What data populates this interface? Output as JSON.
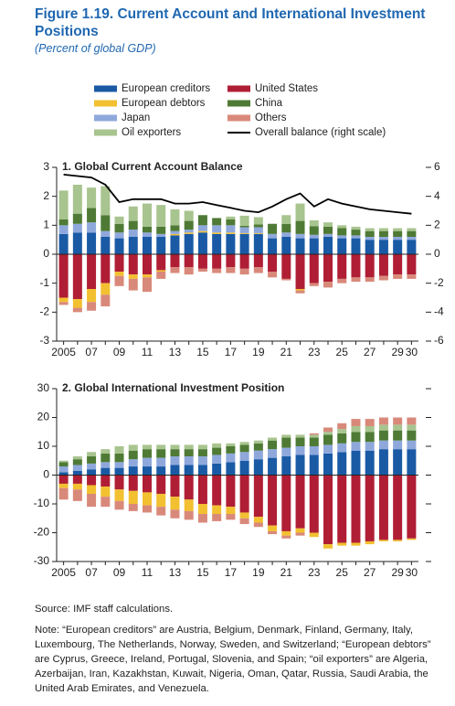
{
  "figure": {
    "title": "Figure 1.19.  Current Account and International Investment Positions",
    "subtitle": "(Percent of global GDP)",
    "source": "Source: IMF staff calculations.",
    "note": "Note: “European creditors” are Austria, Belgium, Denmark, Finland, Germany, Italy, Luxembourg, The Netherlands, Norway, Sweden, and Switzerland; “European debtors” are Cyprus, Greece, Ireland, Portugal, Slovenia, and Spain; “oil exporters” are Algeria, Azerbaijan, Iran, Kazakhstan, Kuwait, Nigeria, Oman, Qatar, Russia, Saudi Arabia, the United Arab Emirates, and Venezuela."
  },
  "chart_data": [
    {
      "type": "bar",
      "stacked": true,
      "title": "1. Global Current Account Balance",
      "categories": [
        "2005",
        null,
        "07",
        null,
        "09",
        null,
        "11",
        null,
        "13",
        null,
        "15",
        null,
        "17",
        null,
        "19",
        null,
        "21",
        null,
        "23",
        null,
        "25",
        null,
        "27",
        null,
        "29",
        "30"
      ],
      "ylim": [
        -3,
        3
      ],
      "yticks": [
        -3,
        -2,
        -1,
        0,
        1,
        2,
        3
      ],
      "y2lim": [
        -6,
        6
      ],
      "y2ticks": [
        -6,
        -4,
        -2,
        0,
        2,
        4,
        6
      ],
      "series": [
        {
          "name": "European creditors",
          "color": "#1a5aa5",
          "values": [
            0.7,
            0.75,
            0.75,
            0.6,
            0.55,
            0.6,
            0.6,
            0.6,
            0.65,
            0.7,
            0.75,
            0.7,
            0.7,
            0.7,
            0.7,
            0.55,
            0.6,
            0.55,
            0.55,
            0.6,
            0.55,
            0.55,
            0.5,
            0.5,
            0.5,
            0.5
          ]
        },
        {
          "name": "European debtors",
          "color": "#f2c030",
          "values": [
            -0.15,
            -0.3,
            -0.45,
            -0.4,
            -0.15,
            -0.15,
            -0.1,
            -0.05,
            0.05,
            0.05,
            0.05,
            0.05,
            0.05,
            0.03,
            0.03,
            0,
            0,
            -0.05,
            0,
            0,
            0,
            0,
            0,
            0,
            0,
            0
          ]
        },
        {
          "name": "Japan",
          "color": "#8fa8dc",
          "values": [
            0.3,
            0.3,
            0.35,
            0.2,
            0.2,
            0.25,
            0.15,
            0.1,
            0.1,
            0.1,
            0.2,
            0.25,
            0.25,
            0.2,
            0.2,
            0.15,
            0.15,
            0.15,
            0.12,
            0.1,
            0.1,
            0.1,
            0.1,
            0.1,
            0.1,
            0.1
          ]
        },
        {
          "name": "Oil exporters",
          "color": "#a8c48f",
          "values": [
            1.0,
            1.0,
            0.7,
            1.0,
            0.25,
            0.5,
            0.8,
            0.75,
            0.55,
            0.35,
            0,
            0,
            0.1,
            0.35,
            0.25,
            0,
            0.3,
            0.6,
            0.2,
            0.15,
            0.1,
            0.1,
            0.1,
            0.1,
            0.1,
            0.1
          ]
        },
        {
          "name": "United States",
          "color": "#b01e35",
          "values": [
            -1.5,
            -1.55,
            -1.2,
            -1.0,
            -0.6,
            -0.7,
            -0.7,
            -0.55,
            -0.45,
            -0.45,
            -0.5,
            -0.5,
            -0.45,
            -0.5,
            -0.45,
            -0.6,
            -0.85,
            -1.2,
            -1.0,
            -0.95,
            -0.85,
            -0.8,
            -0.8,
            -0.75,
            -0.7,
            -0.7
          ]
        },
        {
          "name": "China",
          "color": "#4f7a35",
          "values": [
            0.2,
            0.35,
            0.5,
            0.55,
            0.3,
            0.3,
            0.2,
            0.25,
            0.2,
            0.3,
            0.35,
            0.25,
            0.2,
            0.05,
            0.1,
            0.35,
            0.3,
            0.45,
            0.3,
            0.25,
            0.25,
            0.2,
            0.2,
            0.2,
            0.2,
            0.2
          ]
        },
        {
          "name": "Others",
          "color": "#d9897a",
          "values": [
            -0.1,
            -0.15,
            -0.3,
            -0.4,
            -0.35,
            -0.4,
            -0.5,
            -0.25,
            -0.2,
            -0.25,
            -0.1,
            -0.15,
            -0.2,
            -0.2,
            -0.2,
            -0.2,
            -0.05,
            -0.1,
            -0.1,
            -0.2,
            -0.15,
            -0.15,
            -0.15,
            -0.15,
            -0.15,
            -0.15
          ]
        },
        {
          "name": "Overall balance (right scale)",
          "color": "#000000",
          "type": "line",
          "axis": "y2",
          "values": [
            5.5,
            5.4,
            5.3,
            4.8,
            3.6,
            3.8,
            3.8,
            3.8,
            3.5,
            3.5,
            3.6,
            3.4,
            3.2,
            3.0,
            2.9,
            3.3,
            3.8,
            4.2,
            3.3,
            3.8,
            3.5,
            3.3,
            3.1,
            3.0,
            2.9,
            2.8
          ]
        }
      ]
    },
    {
      "type": "bar",
      "stacked": true,
      "title": "2. Global International Investment Position",
      "categories": [
        "2005",
        null,
        "07",
        null,
        "09",
        null,
        "11",
        null,
        "13",
        null,
        "15",
        null,
        "17",
        null,
        "19",
        null,
        "21",
        null,
        "23",
        null,
        "25",
        null,
        "27",
        null,
        "29",
        "30"
      ],
      "ylim": [
        -30,
        30
      ],
      "yticks": [
        -30,
        -20,
        -10,
        0,
        10,
        20,
        30
      ],
      "series": [
        {
          "name": "European creditors",
          "color": "#1a5aa5",
          "values": [
            1,
            1.5,
            2,
            2.5,
            2.5,
            3,
            3,
            3,
            3.5,
            3.5,
            3.5,
            4,
            4.5,
            5,
            5.5,
            6,
            6.5,
            7,
            7,
            7.5,
            8,
            8.5,
            8.5,
            9,
            9,
            9
          ]
        },
        {
          "name": "European debtors",
          "color": "#f2c030",
          "values": [
            -1.5,
            -2,
            -3,
            -3.5,
            -4,
            -4.5,
            -4.5,
            -4.5,
            -4.5,
            -4,
            -3.5,
            -3,
            -2.5,
            -2,
            -2,
            -2,
            -1.5,
            -1.5,
            -1.5,
            -1.5,
            -1,
            -1,
            -1,
            -0.5,
            -0.5,
            -0.5
          ]
        },
        {
          "name": "Japan",
          "color": "#8fa8dc",
          "values": [
            2,
            2,
            2,
            2,
            2,
            2.5,
            3,
            3,
            3,
            3,
            3,
            3,
            3,
            3,
            3,
            3,
            3,
            3,
            3,
            3,
            3,
            3,
            3,
            3,
            3,
            3
          ]
        },
        {
          "name": "Oil exporters",
          "color": "#a8c48f",
          "values": [
            0.5,
            1,
            1.5,
            1.5,
            2.5,
            2,
            1.5,
            1.5,
            1.5,
            1.5,
            1.5,
            1.5,
            1,
            1,
            1,
            1,
            1,
            1,
            1,
            1,
            1.5,
            2,
            2,
            2,
            2,
            2
          ]
        },
        {
          "name": "United States",
          "color": "#b01e35",
          "values": [
            -3,
            -3,
            -3.5,
            -4,
            -5,
            -5.5,
            -6,
            -6.5,
            -7.5,
            -8.5,
            -10,
            -10.5,
            -11,
            -13,
            -14.5,
            -17.5,
            -19.5,
            -18.5,
            -20,
            -24,
            -23.5,
            -23.5,
            -23,
            -22.5,
            -22.5,
            -22
          ]
        },
        {
          "name": "China",
          "color": "#4f7a35",
          "values": [
            1.5,
            2,
            2.5,
            3,
            3,
            3,
            3,
            3,
            2.5,
            2.5,
            2.5,
            2.5,
            2.5,
            2.5,
            2.5,
            3,
            3.5,
            3,
            3,
            3.5,
            3.5,
            3.5,
            3.5,
            3.5,
            3.5,
            3.5
          ]
        },
        {
          "name": "Others",
          "color": "#d9897a",
          "values": [
            -4,
            -4,
            -4.5,
            -3.5,
            -3,
            -2.5,
            -2.5,
            -3,
            -3,
            -3,
            -3,
            -2.5,
            -2,
            -2,
            -1.5,
            -1,
            -1,
            -1,
            0.5,
            1.5,
            2,
            2.5,
            2.5,
            2.5,
            2.5,
            2.5
          ]
        }
      ]
    }
  ]
}
